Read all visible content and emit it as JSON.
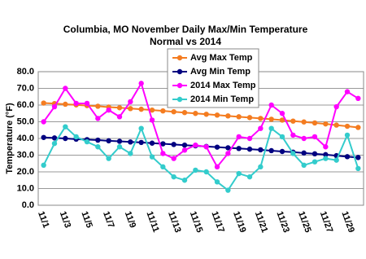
{
  "chart_data": {
    "type": "line",
    "title": "Columbia, MO November Daily Max/Min Temperature",
    "subtitle": "Normal vs 2014",
    "y_label": "Temperature (°F)",
    "categories": [
      "11/1",
      null,
      "11/3",
      null,
      "11/5",
      null,
      "11/7",
      null,
      "11/9",
      null,
      "11/11",
      null,
      "11/13",
      null,
      "11/15",
      null,
      "11/17",
      null,
      "11/19",
      null,
      "11/21",
      null,
      "11/23",
      null,
      "11/25",
      null,
      "11/27",
      null,
      "11/29",
      null
    ],
    "series": [
      {
        "name": "Avg Max Temp",
        "color": "#f47c20",
        "values": [
          61.2,
          60.9,
          60.5,
          60.1,
          59.7,
          59.3,
          58.8,
          58.4,
          57.9,
          57.5,
          57.0,
          56.5,
          56.0,
          55.5,
          55.0,
          54.5,
          54.0,
          53.5,
          53.0,
          52.5,
          52.0,
          51.5,
          51.0,
          50.4,
          49.9,
          49.3,
          48.7,
          48.0,
          47.3,
          46.6
        ]
      },
      {
        "name": "Avg Min Temp",
        "color": "#000080",
        "values": [
          40.6,
          40.3,
          40.0,
          39.6,
          39.3,
          39.0,
          38.6,
          38.3,
          37.9,
          37.6,
          37.2,
          36.8,
          36.4,
          36.0,
          35.6,
          35.2,
          34.8,
          34.4,
          34.0,
          33.6,
          33.2,
          32.7,
          32.2,
          31.8,
          31.3,
          30.8,
          30.3,
          29.7,
          29.1,
          28.6
        ]
      },
      {
        "name": "2014 Max Temp",
        "color": "#ff00ff",
        "values": [
          50,
          59,
          70,
          61,
          61,
          52,
          57,
          53,
          62,
          73,
          51,
          31,
          28,
          33,
          36,
          35,
          23,
          31,
          41,
          40,
          46,
          60,
          55,
          42,
          40,
          41,
          35,
          59,
          68,
          64
        ]
      },
      {
        "name": "2014 Min Temp",
        "color": "#33cccc",
        "values": [
          24,
          37,
          47,
          41,
          38,
          35,
          28,
          35,
          31,
          46,
          29,
          23,
          17,
          15,
          21,
          20,
          14,
          9,
          19,
          17,
          23,
          46,
          41,
          31,
          24,
          26,
          28,
          27,
          42,
          22
        ]
      }
    ],
    "ylim": [
      0,
      80
    ],
    "yticks": [
      {
        "value": 0,
        "label": "0.0"
      },
      {
        "value": 10,
        "label": "10.0"
      },
      {
        "value": 20,
        "label": "20.0"
      },
      {
        "value": 30,
        "label": "30.0"
      },
      {
        "value": 40,
        "label": "40.0"
      },
      {
        "value": 50,
        "label": "50.0"
      },
      {
        "value": 60,
        "label": "60.0"
      },
      {
        "value": 70,
        "label": "70.0"
      },
      {
        "value": 80,
        "label": "80.0"
      }
    ],
    "grid": true,
    "legend": "top-right"
  }
}
